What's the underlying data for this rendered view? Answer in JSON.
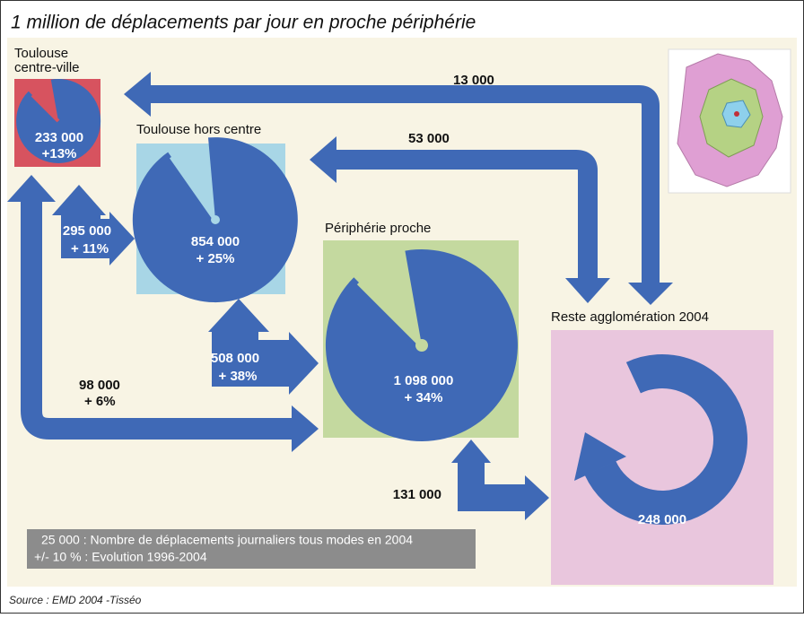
{
  "title": "1 million de déplacements par jour en proche périphérie",
  "zones": [
    {
      "label": [
        "Toulouse",
        "centre-ville"
      ],
      "value": "233 000",
      "change": "+13%"
    },
    {
      "label": [
        "Toulouse hors centre"
      ],
      "value": "854 000",
      "change": "+ 25%"
    },
    {
      "label": [
        "Périphérie proche"
      ],
      "value": "1 098 000",
      "change": "+ 34%"
    },
    {
      "label": [
        "Reste agglomération 2004"
      ],
      "value": "248 000"
    }
  ],
  "flows": [
    {
      "value": "13 000"
    },
    {
      "value": "53 000"
    },
    {
      "value": "295 000",
      "change": "+ 11%"
    },
    {
      "value": "508 000",
      "change": "+ 38%"
    },
    {
      "value": "98 000",
      "change": "+ 6%"
    },
    {
      "value": "131 000"
    }
  ],
  "legend": [
    "25 000 : Nombre de déplacements journaliers tous modes en 2004",
    "+/- 10 % : Evolution 1996-2004"
  ],
  "source": "Source : EMD 2004 -Tisséo"
}
